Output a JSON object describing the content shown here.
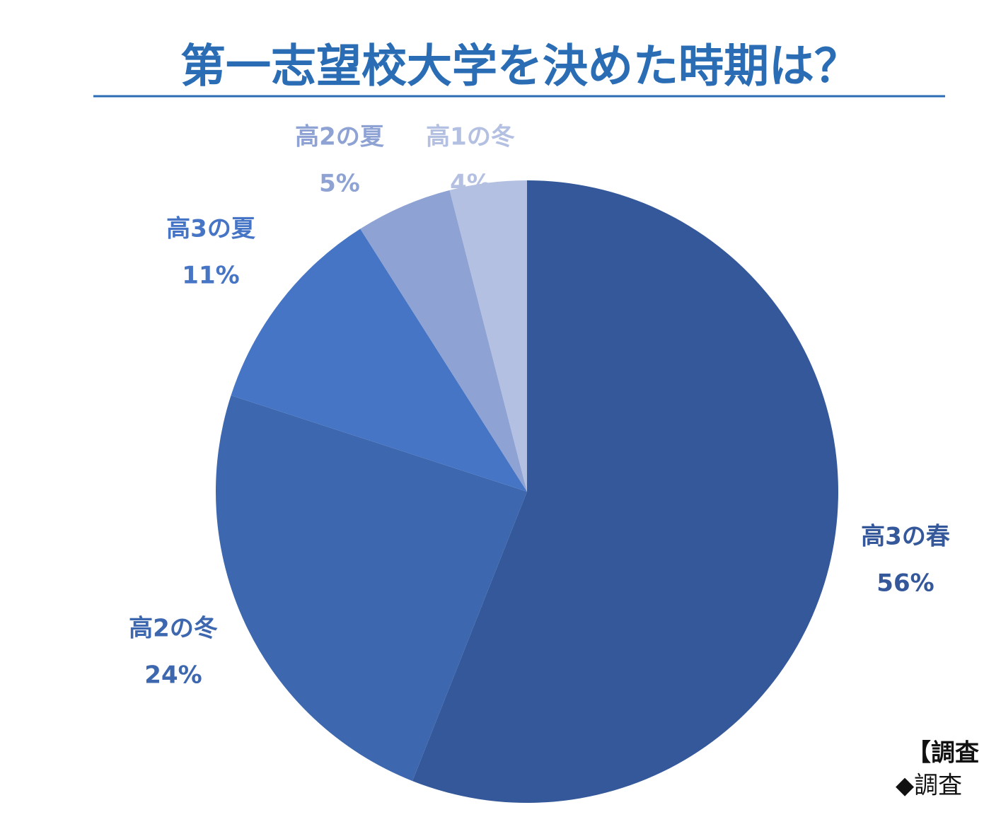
{
  "chart_data": {
    "type": "pie",
    "title": "第一志望校大学を決めた時期は？",
    "categories": [
      "高3の春",
      "高2の冬",
      "高3の夏",
      "高2の夏",
      "高1の冬"
    ],
    "values": [
      56,
      24,
      11,
      5,
      4
    ],
    "value_labels": [
      "56%",
      "24%",
      "11%",
      "5%",
      "4%"
    ],
    "colors": [
      "#34589a",
      "#3d67ae",
      "#4675c6",
      "#8ea3d4",
      "#b4c0e2"
    ],
    "notes": [
      "【調査",
      "◆調査"
    ]
  }
}
